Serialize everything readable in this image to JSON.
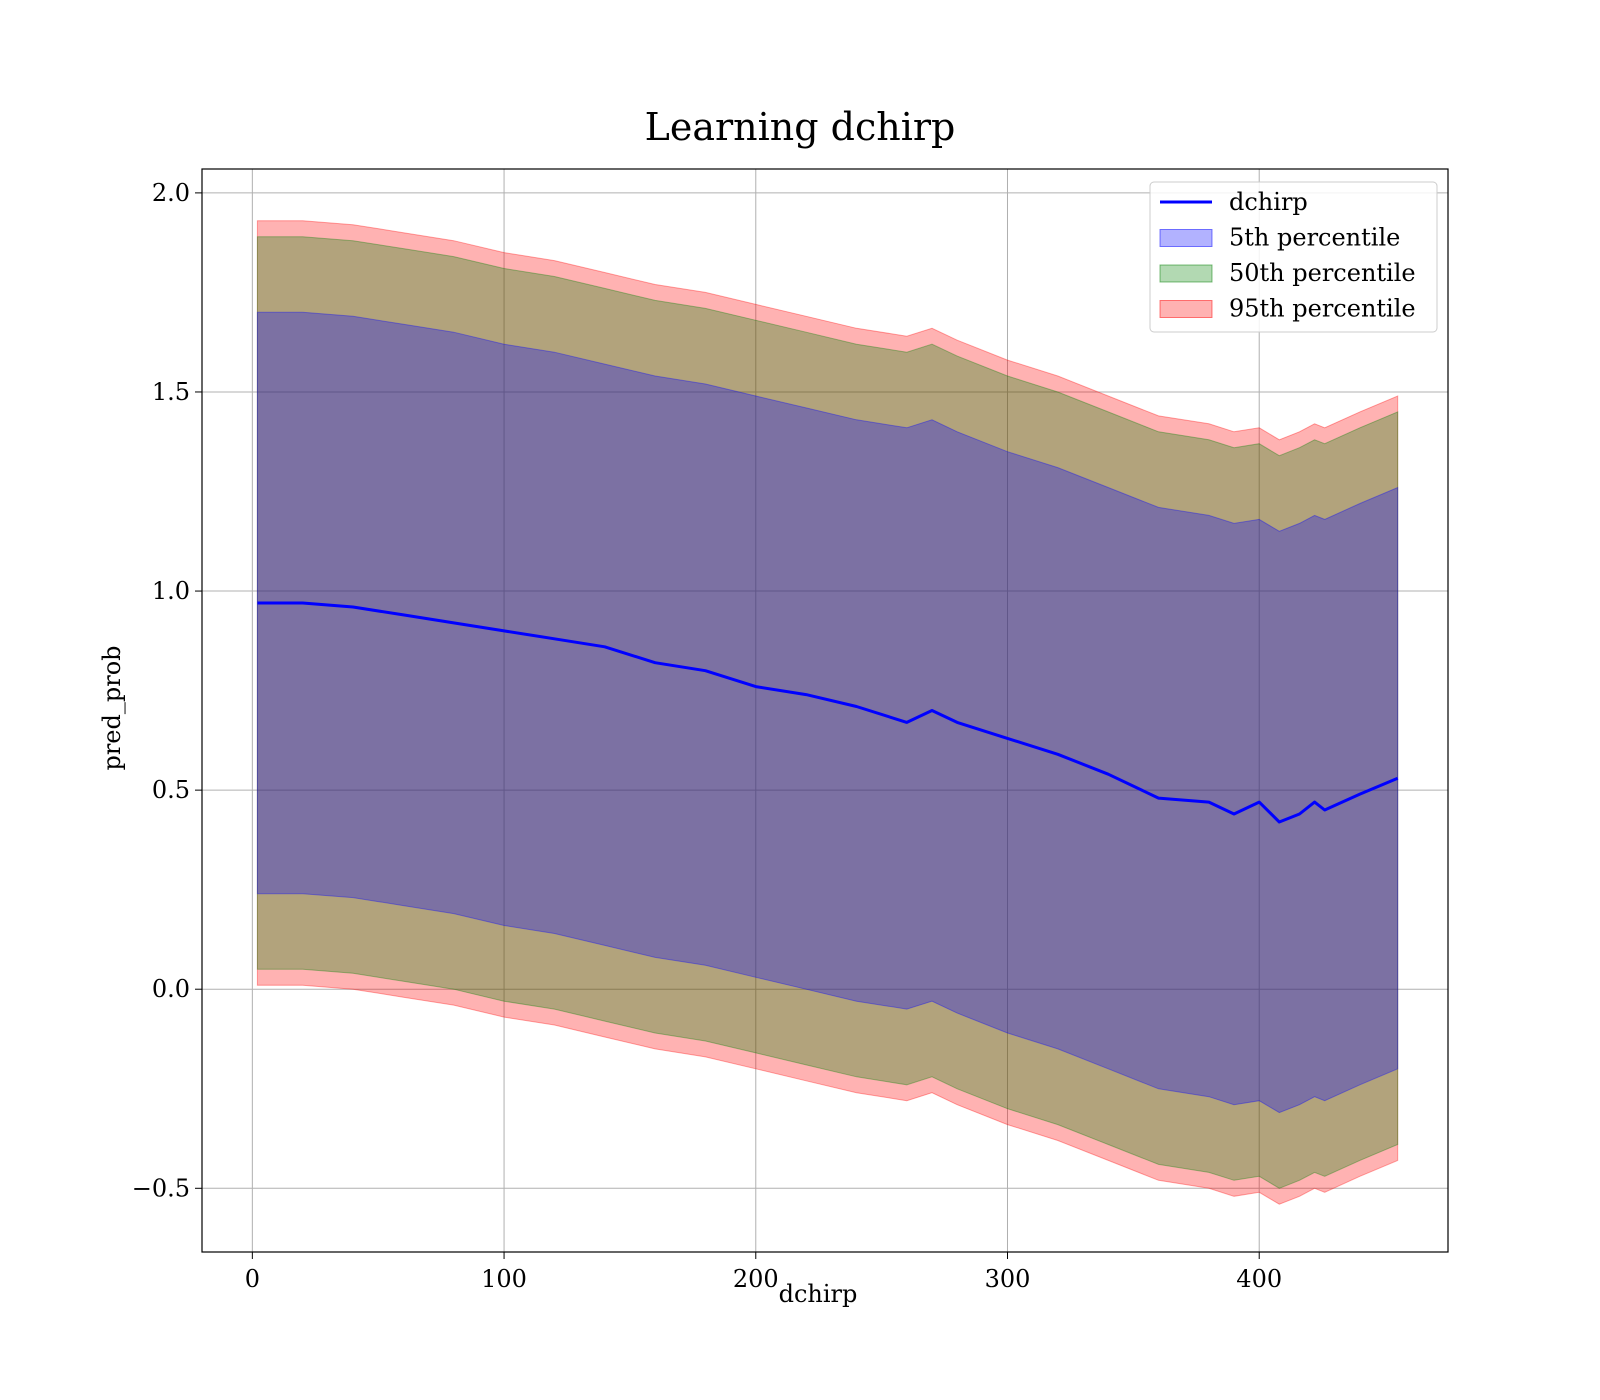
{
  "chart_data": {
    "type": "area",
    "title": "Learning dchirp",
    "xlabel": "dchirp",
    "ylabel": "pred_prob",
    "xlim": [
      -20,
      475
    ],
    "ylim": [
      -0.66,
      2.06
    ],
    "xticks": [
      0,
      100,
      200,
      300,
      400
    ],
    "yticks": [
      -0.5,
      0.0,
      0.5,
      1.0,
      1.5,
      2.0
    ],
    "xtick_labels": [
      "0",
      "100",
      "200",
      "300",
      "400"
    ],
    "ytick_labels": [
      "−0.5",
      "0.0",
      "0.5",
      "1.0",
      "1.5",
      "2.0"
    ],
    "grid": true,
    "legend_position": "top-right",
    "x": [
      2,
      20,
      40,
      60,
      80,
      100,
      120,
      140,
      160,
      180,
      200,
      220,
      240,
      260,
      270,
      280,
      300,
      320,
      340,
      360,
      380,
      390,
      400,
      408,
      416,
      422,
      426,
      440,
      455
    ],
    "line": {
      "name": "dchirp",
      "color": "#0000ff",
      "values": [
        0.97,
        0.97,
        0.96,
        0.94,
        0.92,
        0.9,
        0.88,
        0.86,
        0.82,
        0.8,
        0.76,
        0.74,
        0.71,
        0.67,
        0.7,
        0.67,
        0.63,
        0.59,
        0.54,
        0.48,
        0.47,
        0.44,
        0.47,
        0.42,
        0.44,
        0.47,
        0.45,
        0.49,
        0.53
      ]
    },
    "bands": [
      {
        "name": "95th percentile",
        "color": "#ff0000",
        "alpha": 0.3,
        "upper": [
          1.93,
          1.93,
          1.92,
          1.9,
          1.88,
          1.85,
          1.83,
          1.8,
          1.77,
          1.75,
          1.72,
          1.69,
          1.66,
          1.64,
          1.66,
          1.63,
          1.58,
          1.54,
          1.49,
          1.44,
          1.42,
          1.4,
          1.41,
          1.38,
          1.4,
          1.42,
          1.41,
          1.45,
          1.49
        ],
        "lower": [
          0.01,
          0.01,
          0.0,
          -0.02,
          -0.04,
          -0.07,
          -0.09,
          -0.12,
          -0.15,
          -0.17,
          -0.2,
          -0.23,
          -0.26,
          -0.28,
          -0.26,
          -0.29,
          -0.34,
          -0.38,
          -0.43,
          -0.48,
          -0.5,
          -0.52,
          -0.51,
          -0.54,
          -0.52,
          -0.5,
          -0.51,
          -0.47,
          -0.43
        ]
      },
      {
        "name": "50th percentile",
        "color": "#008000",
        "alpha": 0.3,
        "upper": [
          1.89,
          1.89,
          1.88,
          1.86,
          1.84,
          1.81,
          1.79,
          1.76,
          1.73,
          1.71,
          1.68,
          1.65,
          1.62,
          1.6,
          1.62,
          1.59,
          1.54,
          1.5,
          1.45,
          1.4,
          1.38,
          1.36,
          1.37,
          1.34,
          1.36,
          1.38,
          1.37,
          1.41,
          1.45
        ],
        "lower": [
          0.05,
          0.05,
          0.04,
          0.02,
          0.0,
          -0.03,
          -0.05,
          -0.08,
          -0.11,
          -0.13,
          -0.16,
          -0.19,
          -0.22,
          -0.24,
          -0.22,
          -0.25,
          -0.3,
          -0.34,
          -0.39,
          -0.44,
          -0.46,
          -0.48,
          -0.47,
          -0.5,
          -0.48,
          -0.46,
          -0.47,
          -0.43,
          -0.39
        ]
      },
      {
        "name": "5th percentile",
        "color": "#0000ff",
        "alpha": 0.3,
        "upper": [
          1.7,
          1.7,
          1.69,
          1.67,
          1.65,
          1.62,
          1.6,
          1.57,
          1.54,
          1.52,
          1.49,
          1.46,
          1.43,
          1.41,
          1.43,
          1.4,
          1.35,
          1.31,
          1.26,
          1.21,
          1.19,
          1.17,
          1.18,
          1.15,
          1.17,
          1.19,
          1.18,
          1.22,
          1.26
        ],
        "lower": [
          0.24,
          0.24,
          0.23,
          0.21,
          0.19,
          0.16,
          0.14,
          0.11,
          0.08,
          0.06,
          0.03,
          0.0,
          -0.03,
          -0.05,
          -0.03,
          -0.06,
          -0.11,
          -0.15,
          -0.2,
          -0.25,
          -0.27,
          -0.29,
          -0.28,
          -0.31,
          -0.29,
          -0.27,
          -0.28,
          -0.24,
          -0.2
        ]
      }
    ],
    "legend": [
      "dchirp",
      "5th percentile",
      "50th percentile",
      "95th percentile"
    ]
  }
}
